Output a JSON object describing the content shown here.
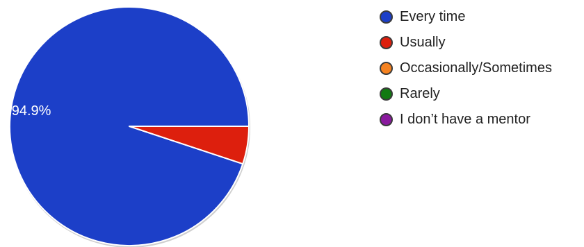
{
  "chart_data": {
    "type": "pie",
    "categories": [
      "Every time",
      "Usually",
      "Occasionally/Sometimes",
      "Rarely",
      "I don’t have a mentor"
    ],
    "values": [
      94.9,
      5.1,
      0,
      0,
      0
    ],
    "colors": [
      "#1c3fc8",
      "#dd1f0d",
      "#f58220",
      "#127a12",
      "#8a1a9e"
    ],
    "data_labels": [
      "94.9%",
      "",
      "",
      "",
      ""
    ],
    "legend_position": "right",
    "start_angle": "3 o'clock",
    "direction": "counterclockwise"
  }
}
